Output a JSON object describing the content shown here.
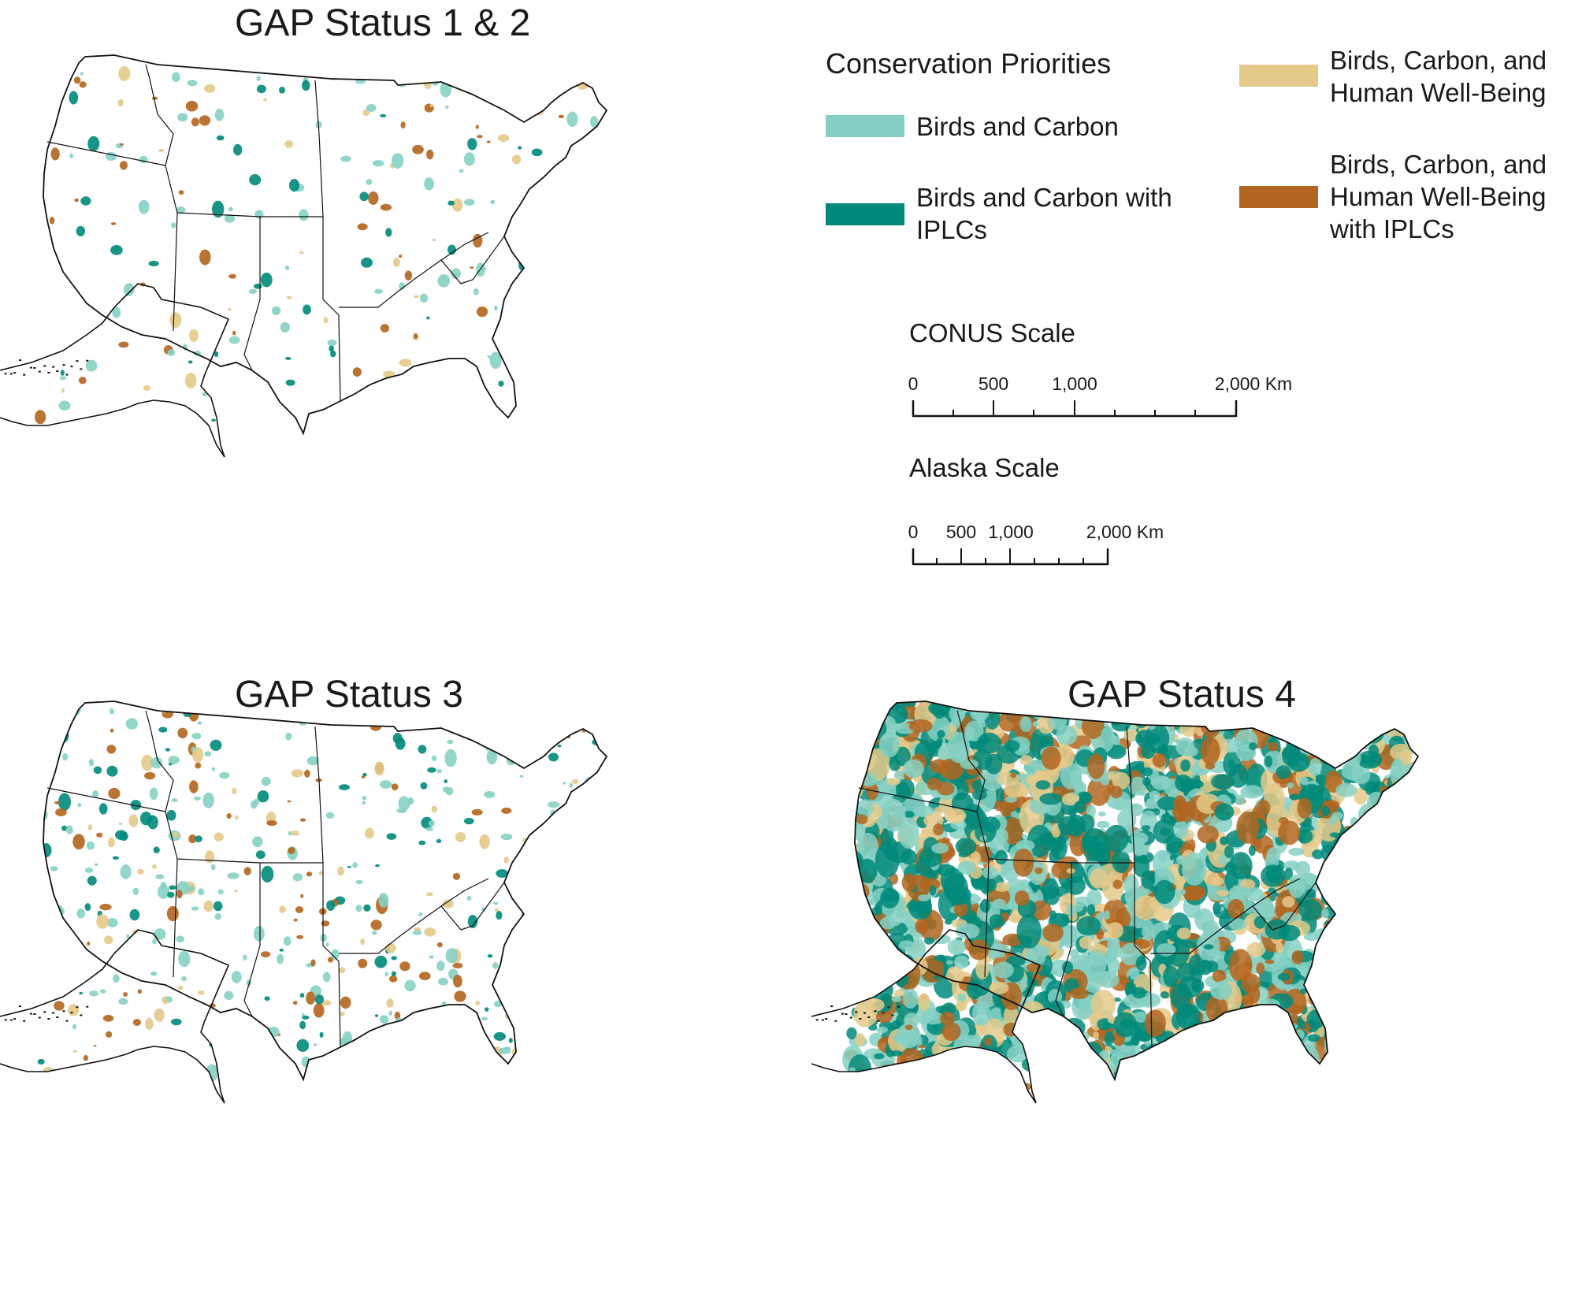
{
  "panels": {
    "top_left": {
      "title": "GAP Status 1 & 2"
    },
    "bottom_left": {
      "title": "GAP Status 3"
    },
    "bottom_right": {
      "title": "GAP Status 4"
    }
  },
  "legend": {
    "title": "Conservation Priorities",
    "items": [
      {
        "label_lines": [
          "Birds and Carbon"
        ],
        "color": "#86d0c3"
      },
      {
        "label_lines": [
          "Birds and Carbon with",
          "IPLCs"
        ],
        "color": "#00897a"
      },
      {
        "label_lines": [
          "Birds, Carbon, and",
          "Human Well-Being"
        ],
        "color": "#e4c98a"
      },
      {
        "label_lines": [
          "Birds, Carbon, and",
          "Human Well-Being",
          "with IPLCs"
        ],
        "color": "#b1651e"
      }
    ]
  },
  "scales": {
    "conus": {
      "title": "CONUS Scale",
      "ticks": [
        "0",
        "500",
        "1,000",
        "2,000 Km"
      ],
      "tick_values_km": [
        0,
        500,
        1000,
        2000
      ]
    },
    "alaska": {
      "title": "Alaska Scale",
      "ticks": [
        "0",
        "500",
        "1,000",
        "2,000 Km"
      ],
      "tick_values_km": [
        0,
        500,
        1000,
        2000
      ]
    }
  },
  "colors": {
    "outline": "#111111",
    "birds_carbon": "#86d0c3",
    "birds_carbon_iplc": "#00897a",
    "birds_carbon_hwb": "#e4c98a",
    "birds_carbon_hwb_iplc": "#b1651e"
  }
}
